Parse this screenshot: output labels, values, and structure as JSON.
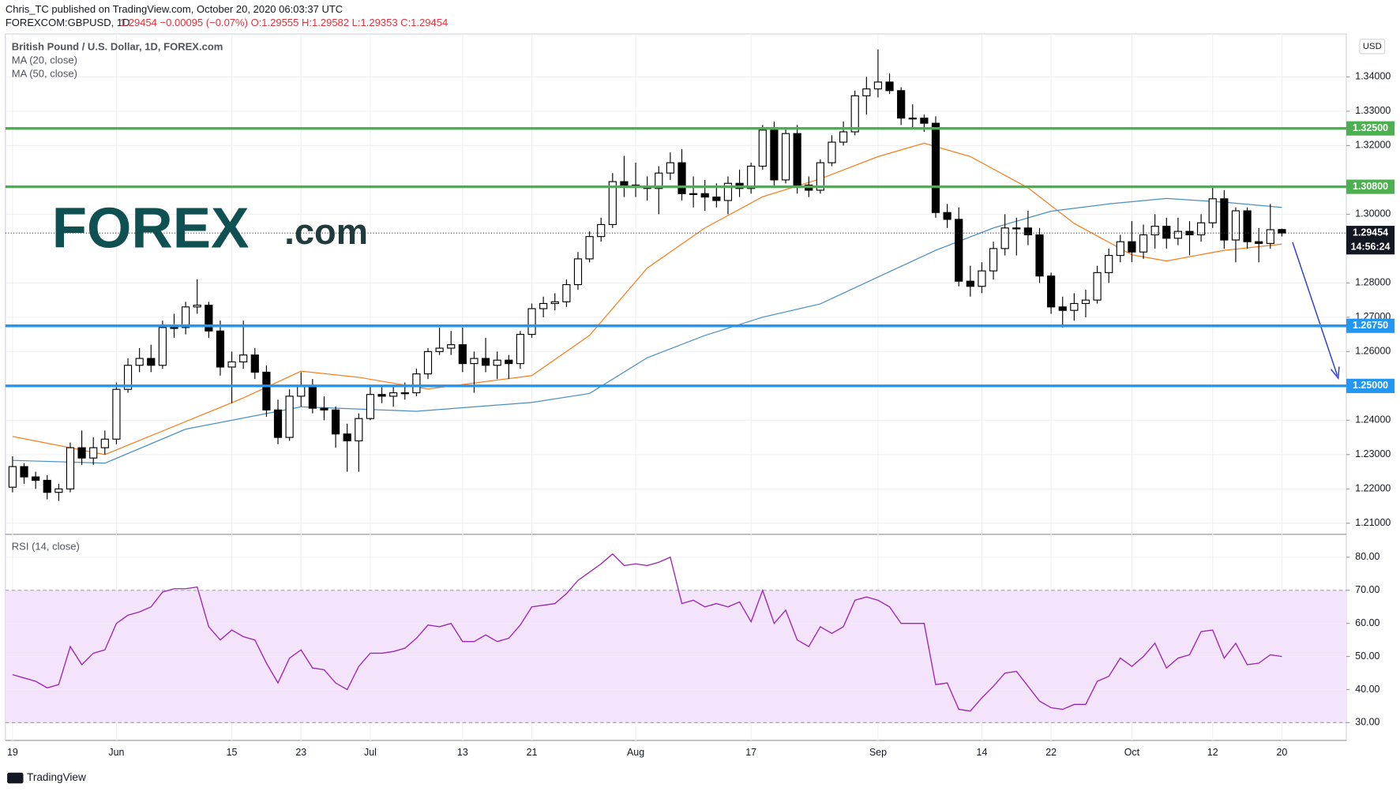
{
  "header": {
    "publisher": "Chris_TC published on TradingView.com, October 20, 2020 06:03:37 UTC",
    "symbol": "FOREXCOM:GBPUSD, 1D",
    "quote": "1.29454 −0.00095 (−0.07%) O:1.29555 H:1.29582 L:1.29353 C:1.29454"
  },
  "logo": {
    "brand": "FOREX",
    "suffix": ".com"
  },
  "currency": "USD",
  "footer": "TradingView",
  "chart_data": [
    {
      "type": "candlestick",
      "title": "British Pound / U.S. Dollar, 1D, FOREX.com",
      "up_color": "#ffffff",
      "down_color": "#000000",
      "open": [
        1.2205,
        1.2265,
        1.2235,
        1.2225,
        1.219,
        1.22,
        1.232,
        1.229,
        1.232,
        1.2345,
        1.249,
        1.256,
        1.258,
        1.256,
        1.267,
        1.267,
        1.273,
        1.2735,
        1.266,
        1.2555,
        1.257,
        1.259,
        1.254,
        1.243,
        1.235,
        1.247,
        1.25,
        1.2435,
        1.243,
        1.236,
        1.234,
        1.2405,
        1.2475,
        1.247,
        1.248,
        1.248,
        1.2535,
        1.26,
        1.261,
        1.262,
        1.2565,
        1.258,
        1.256,
        1.2575,
        1.2565,
        1.265,
        1.2725,
        1.274,
        1.2745,
        1.2795,
        1.287,
        1.2935,
        1.297,
        1.3095,
        1.3085,
        1.308,
        1.3075,
        1.312,
        1.315,
        1.306,
        1.306,
        1.305,
        1.304,
        1.309,
        1.3075,
        1.314,
        1.3245,
        1.31,
        1.3235,
        1.3085,
        1.307,
        1.315,
        1.321,
        1.324,
        1.3345,
        1.3365,
        1.3385,
        1.336,
        1.328,
        1.328,
        1.3265,
        1.3005,
        1.2985,
        1.2805,
        1.279,
        1.2835,
        1.29,
        1.296,
        1.296,
        1.294,
        1.282,
        1.273,
        1.272,
        1.274,
        1.275,
        1.283,
        1.288,
        1.292,
        1.289,
        1.294,
        1.2965,
        1.293,
        1.295,
        1.294,
        1.2975,
        1.3045,
        1.2925,
        1.301,
        1.292,
        1.2915,
        1.29555
      ],
      "high": [
        1.2295,
        1.2275,
        1.225,
        1.224,
        1.2215,
        1.2335,
        1.237,
        1.235,
        1.237,
        1.251,
        1.258,
        1.261,
        1.262,
        1.269,
        1.271,
        1.2745,
        1.281,
        1.2745,
        1.269,
        1.26,
        1.269,
        1.261,
        1.256,
        1.246,
        1.249,
        1.254,
        1.252,
        1.247,
        1.244,
        1.239,
        1.242,
        1.25,
        1.25,
        1.25,
        1.251,
        1.255,
        1.261,
        1.267,
        1.266,
        1.267,
        1.26,
        1.264,
        1.26,
        1.259,
        1.266,
        1.274,
        1.276,
        1.277,
        1.281,
        1.289,
        1.295,
        1.299,
        1.312,
        1.317,
        1.315,
        1.311,
        1.314,
        1.318,
        1.319,
        1.311,
        1.31,
        1.309,
        1.311,
        1.313,
        1.315,
        1.326,
        1.327,
        1.325,
        1.326,
        1.311,
        1.316,
        1.323,
        1.327,
        1.336,
        1.34,
        1.348,
        1.341,
        1.337,
        1.332,
        1.329,
        1.3285,
        1.303,
        1.302,
        1.285,
        1.286,
        1.292,
        1.3,
        1.299,
        1.301,
        1.296,
        1.283,
        1.276,
        1.277,
        1.278,
        1.285,
        1.29,
        1.294,
        1.298,
        1.297,
        1.3,
        1.299,
        1.299,
        1.298,
        1.3,
        1.308,
        1.307,
        1.302,
        1.302,
        1.296,
        1.303,
        1.29582
      ],
      "low": [
        1.219,
        1.2215,
        1.22,
        1.217,
        1.2165,
        1.219,
        1.227,
        1.227,
        1.23,
        1.233,
        1.248,
        1.254,
        1.254,
        1.255,
        1.264,
        1.265,
        1.271,
        1.264,
        1.253,
        1.245,
        1.255,
        1.252,
        1.241,
        1.233,
        1.234,
        1.244,
        1.242,
        1.24,
        1.232,
        1.225,
        1.225,
        1.24,
        1.245,
        1.244,
        1.246,
        1.247,
        1.252,
        1.259,
        1.259,
        1.254,
        1.248,
        1.254,
        1.252,
        1.252,
        1.255,
        1.264,
        1.27,
        1.272,
        1.273,
        1.278,
        1.286,
        1.292,
        1.296,
        1.305,
        1.305,
        1.304,
        1.3,
        1.31,
        1.304,
        1.302,
        1.301,
        1.302,
        1.3,
        1.305,
        1.306,
        1.313,
        1.308,
        1.309,
        1.306,
        1.305,
        1.306,
        1.314,
        1.32,
        1.323,
        1.329,
        1.334,
        1.335,
        1.326,
        1.325,
        1.324,
        1.299,
        1.296,
        1.279,
        1.276,
        1.277,
        1.281,
        1.288,
        1.288,
        1.291,
        1.28,
        1.271,
        1.267,
        1.269,
        1.27,
        1.274,
        1.28,
        1.286,
        1.286,
        1.287,
        1.29,
        1.29,
        1.291,
        1.288,
        1.292,
        1.296,
        1.29,
        1.286,
        1.29,
        1.286,
        1.29,
        1.29353
      ],
      "close": [
        1.2265,
        1.2235,
        1.2225,
        1.219,
        1.22,
        1.232,
        1.229,
        1.232,
        1.2345,
        1.249,
        1.256,
        1.258,
        1.256,
        1.267,
        1.267,
        1.273,
        1.2735,
        1.266,
        1.2555,
        1.257,
        1.259,
        1.254,
        1.243,
        1.235,
        1.247,
        1.25,
        1.2435,
        1.243,
        1.236,
        1.234,
        1.2405,
        1.2475,
        1.247,
        1.248,
        1.248,
        1.2535,
        1.26,
        1.261,
        1.262,
        1.2565,
        1.258,
        1.256,
        1.2575,
        1.2565,
        1.265,
        1.2725,
        1.274,
        1.2745,
        1.2795,
        1.287,
        1.2935,
        1.297,
        1.3095,
        1.3085,
        1.308,
        1.3075,
        1.312,
        1.315,
        1.306,
        1.306,
        1.305,
        1.304,
        1.309,
        1.3075,
        1.314,
        1.3245,
        1.31,
        1.3235,
        1.3085,
        1.307,
        1.315,
        1.321,
        1.324,
        1.3345,
        1.3365,
        1.3385,
        1.336,
        1.328,
        1.328,
        1.3265,
        1.3005,
        1.2985,
        1.2805,
        1.279,
        1.2835,
        1.29,
        1.296,
        1.296,
        1.294,
        1.282,
        1.273,
        1.272,
        1.274,
        1.275,
        1.283,
        1.288,
        1.292,
        1.289,
        1.294,
        1.2965,
        1.293,
        1.295,
        1.294,
        1.2975,
        1.3045,
        1.2925,
        1.301,
        1.292,
        1.2915,
        1.2955,
        1.29454
      ],
      "series": [
        {
          "name": "MA (20, close)",
          "color": "#f57f20",
          "x": [
            0,
            8,
            20,
            25,
            30,
            36,
            45,
            50,
            55,
            60,
            65,
            70,
            75,
            79,
            83,
            88,
            92,
            97,
            100,
            105,
            110
          ],
          "values": [
            1.2353,
            1.23,
            1.2465,
            1.2543,
            1.2525,
            1.2491,
            1.253,
            1.2647,
            1.2843,
            1.296,
            1.3051,
            1.3103,
            1.3168,
            1.3207,
            1.3168,
            1.3077,
            1.2973,
            1.2882,
            1.2864,
            1.2895,
            1.2913
          ]
        },
        {
          "name": "MA (50, close)",
          "color": "#4a8fc1",
          "x": [
            0,
            8,
            15,
            25,
            35,
            45,
            50,
            55,
            60,
            65,
            70,
            75,
            80,
            85,
            90,
            95,
            100,
            105,
            110
          ],
          "values": [
            1.2283,
            1.2275,
            1.2374,
            1.2439,
            1.2426,
            1.2452,
            1.2478,
            1.2582,
            1.2647,
            1.27,
            1.2739,
            1.2817,
            1.2895,
            1.296,
            1.3009,
            1.303,
            1.3046,
            1.3035,
            1.302
          ]
        }
      ],
      "levels": [
        {
          "value": 1.325,
          "label": "1.32500",
          "color": "#4caf50"
        },
        {
          "value": 1.308,
          "label": "1.30800",
          "color": "#4caf50"
        },
        {
          "value": 1.2675,
          "label": "1.26750",
          "color": "#2196f3"
        },
        {
          "value": 1.25,
          "label": "1.25000",
          "color": "#2196f3"
        }
      ],
      "last": {
        "value": 1.29454,
        "label": "1.29454",
        "countdown": "14:56:24"
      },
      "ylim": [
        1.2069,
        1.3525
      ],
      "yticks": [
        {
          "value": 1.21,
          "label": "1.21000"
        },
        {
          "value": 1.22,
          "label": "1.22000"
        },
        {
          "value": 1.23,
          "label": "1.23000"
        },
        {
          "value": 1.24,
          "label": "1.24000"
        },
        {
          "value": 1.26,
          "label": "1.26000"
        },
        {
          "value": 1.27,
          "label": "1.27000"
        },
        {
          "value": 1.28,
          "label": "1.28000"
        },
        {
          "value": 1.3,
          "label": "1.30000"
        },
        {
          "value": 1.32,
          "label": "1.32000"
        },
        {
          "value": 1.33,
          "label": "1.33000"
        },
        {
          "value": 1.34,
          "label": "1.34000"
        }
      ],
      "xticks": [
        {
          "value": 0,
          "label": "19"
        },
        {
          "value": 9,
          "label": "Jun"
        },
        {
          "value": 19,
          "label": "15"
        },
        {
          "value": 25,
          "label": "23"
        },
        {
          "value": 31,
          "label": "Jul"
        },
        {
          "value": 39,
          "label": "13"
        },
        {
          "value": 45,
          "label": "21"
        },
        {
          "value": 54,
          "label": "Aug"
        },
        {
          "value": 64,
          "label": "17"
        },
        {
          "value": 75,
          "label": "Sep"
        },
        {
          "value": 84,
          "label": "14"
        },
        {
          "value": 90,
          "label": "22"
        },
        {
          "value": 97,
          "label": "Oct"
        },
        {
          "value": 104,
          "label": "12"
        },
        {
          "value": 110,
          "label": "20"
        }
      ],
      "grid": true
    },
    {
      "type": "line",
      "title": "RSI (14, close)",
      "color": "#9c27b0",
      "values": [
        44.5,
        43.5,
        42.5,
        40.5,
        41.5,
        53,
        47.5,
        51,
        52,
        60,
        62.5,
        63.5,
        65,
        69.5,
        70.5,
        70.5,
        71,
        59,
        55,
        58,
        56,
        55,
        48,
        42,
        49.5,
        52,
        46.5,
        46,
        42,
        40,
        47,
        51,
        51,
        51.5,
        52.5,
        55.5,
        59.5,
        59,
        60,
        54.5,
        54.5,
        56.5,
        54.5,
        55.5,
        59.5,
        65,
        65.5,
        66,
        69,
        73,
        75.5,
        78,
        81,
        77.5,
        78,
        77.5,
        78.5,
        80,
        66,
        67,
        65,
        66,
        65,
        66.5,
        60.5,
        70,
        60,
        64,
        55,
        53,
        59,
        57,
        59,
        67,
        68,
        67,
        65,
        60,
        60,
        60,
        41.5,
        42,
        34,
        33.5,
        37.5,
        41,
        45,
        45.5,
        41,
        36.5,
        34.5,
        34,
        35.5,
        35.5,
        42.5,
        44,
        49.5,
        47,
        50,
        54,
        46.5,
        49.5,
        50.5,
        57.5,
        58,
        49.5,
        54,
        47.5,
        48,
        50.5,
        50
      ],
      "band": [
        30,
        70
      ],
      "band_color": "#f3e4fb",
      "ylim": [
        24.6,
        86.8
      ],
      "yticks": [
        {
          "value": 30,
          "label": "30.00"
        },
        {
          "value": 40,
          "label": "40.00"
        },
        {
          "value": 50,
          "label": "50.00"
        },
        {
          "value": 60,
          "label": "60.00"
        },
        {
          "value": 70,
          "label": "70.00"
        },
        {
          "value": 80,
          "label": "80.00"
        }
      ],
      "grid": true
    }
  ]
}
